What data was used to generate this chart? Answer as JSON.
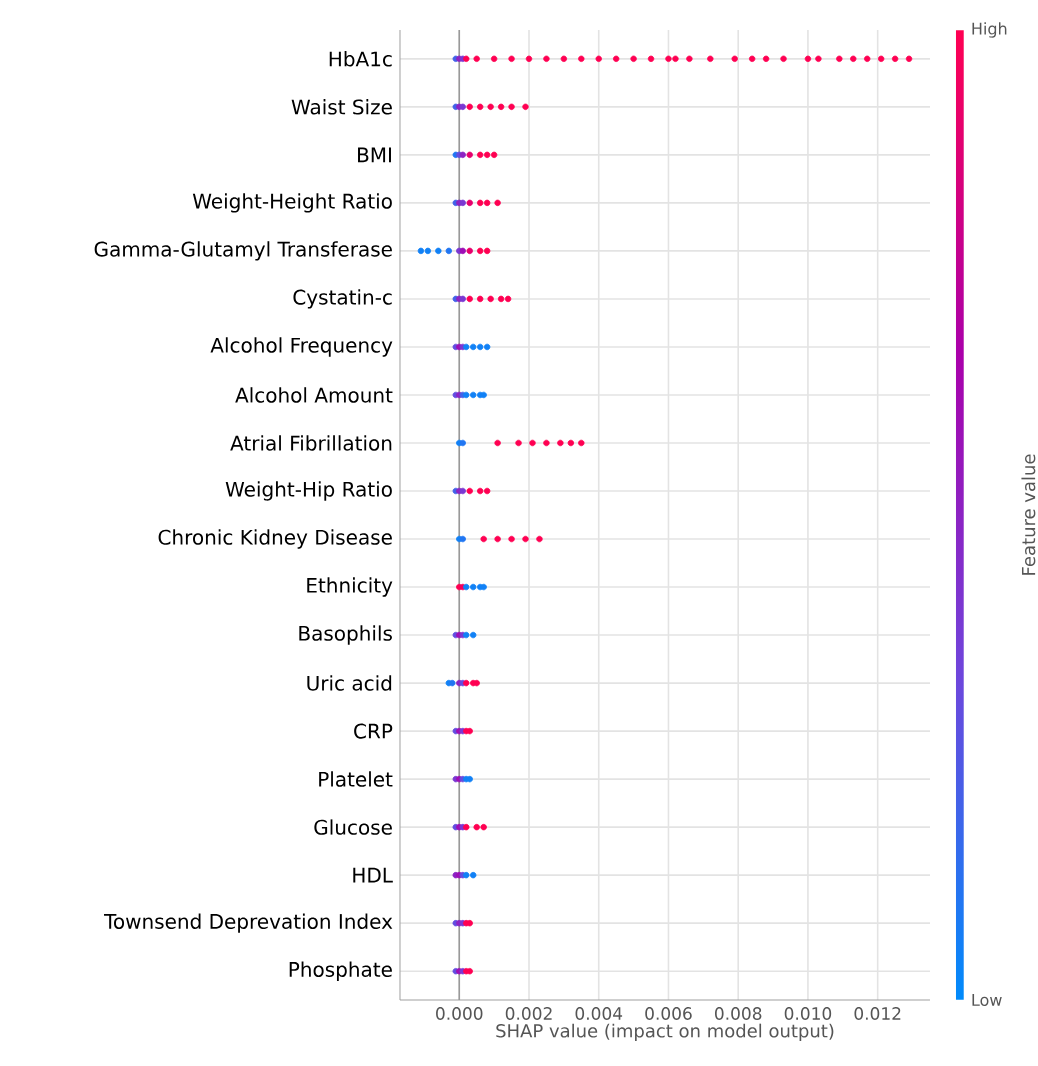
{
  "chart_data": {
    "type": "scatter",
    "orientation": "horizontal",
    "xlabel": "SHAP value (impact on model output)",
    "clabel": "Feature value",
    "categories": [
      "HbA1c",
      "Waist Size",
      "BMI",
      "Weight-Height Ratio",
      "Gamma-Glutamyl Transferase",
      "Cystatin-c",
      "Alcohol Frequency",
      "Alcohol Amount",
      "Atrial Fibrillation",
      "Weight-Hip Ratio",
      "Chronic Kidney Disease",
      "Ethnicity",
      "Basophils",
      "Uric acid",
      "CRP",
      "Platelet",
      "Glucose",
      "HDL",
      "Townsend Deprevation Index",
      "Phosphate"
    ],
    "series": [
      {
        "x": [
          "HbA1c",
          "HbA1c",
          "HbA1c",
          "HbA1c",
          "HbA1c",
          "HbA1c",
          "HbA1c",
          "HbA1c",
          "HbA1c",
          "HbA1c",
          "HbA1c",
          "HbA1c",
          "HbA1c",
          "HbA1c",
          "HbA1c",
          "HbA1c",
          "HbA1c",
          "HbA1c",
          "HbA1c",
          "HbA1c",
          "HbA1c",
          "HbA1c",
          "HbA1c",
          "HbA1c",
          "HbA1c",
          "HbA1c",
          "HbA1c",
          "HbA1c",
          "HbA1c",
          "HbA1c",
          "HbA1c"
        ],
        "values": [
          -0.0001,
          0,
          0.0001,
          0.0002,
          0.0005,
          0.001,
          0.0015,
          0.002,
          0.0025,
          0.003,
          0.0035,
          0.004,
          0.0045,
          0.005,
          0.0055,
          0.006,
          0.0062,
          0.0066,
          0.0072,
          0.0079,
          0.0084,
          0.0088,
          0.0093,
          0.01,
          0.0103,
          0.0109,
          0.0113,
          0.0117,
          0.0121,
          0.0125,
          0.0129
        ],
        "colors": [
          "#4262e8",
          "#8c23c3",
          "#7a38d2",
          "#ff0052",
          "#ff0052",
          "#ff0052",
          "#ff0052",
          "#ff0052",
          "#ff0052",
          "#ff0052",
          "#ff0052",
          "#ff0052",
          "#ff0052",
          "#ff0052",
          "#ff0052",
          "#ff0052",
          "#ff0052",
          "#ff0052",
          "#ff0052",
          "#ff0052",
          "#ff0052",
          "#ff0052",
          "#ff0052",
          "#ff0052",
          "#ff0052",
          "#ff0052",
          "#ff0052",
          "#ff0052",
          "#ff0052",
          "#ff0052",
          "#ff0052"
        ]
      },
      {
        "x": [
          "Waist Size",
          "Waist Size",
          "Waist Size",
          "Waist Size",
          "Waist Size",
          "Waist Size",
          "Waist Size",
          "Waist Size",
          "Waist Size"
        ],
        "values": [
          -0.0001,
          0,
          0.0001,
          0.0003,
          0.0006,
          0.0009,
          0.0012,
          0.0015,
          0.0019
        ],
        "colors": [
          "#4262e8",
          "#8c23c3",
          "#7a38d2",
          "#ff0052",
          "#ff0052",
          "#ff0052",
          "#ff0052",
          "#ff0052",
          "#ff0052"
        ]
      },
      {
        "x": [
          "BMI",
          "BMI",
          "BMI",
          "BMI",
          "BMI",
          "BMI",
          "BMI"
        ],
        "values": [
          -0.0001,
          0,
          0.0001,
          0.0003,
          0.0006,
          0.0008,
          0.001
        ],
        "colors": [
          "#2176f2",
          "#634ddf",
          "#8c23c3",
          "#e6006c",
          "#ff0052",
          "#ff0052",
          "#ff0052"
        ]
      },
      {
        "x": [
          "Weight-Height Ratio",
          "Weight-Height Ratio",
          "Weight-Height Ratio",
          "Weight-Height Ratio",
          "Weight-Height Ratio",
          "Weight-Height Ratio",
          "Weight-Height Ratio"
        ],
        "values": [
          -0.0001,
          0,
          0.0001,
          0.0003,
          0.0006,
          0.0008,
          0.0011
        ],
        "colors": [
          "#4262e8",
          "#8c23c3",
          "#7a38d2",
          "#e6006c",
          "#ff0052",
          "#ff0052",
          "#ff0052"
        ]
      },
      {
        "x": [
          "Gamma-Glutamyl Transferase",
          "Gamma-Glutamyl Transferase",
          "Gamma-Glutamyl Transferase",
          "Gamma-Glutamyl Transferase",
          "Gamma-Glutamyl Transferase",
          "Gamma-Glutamyl Transferase",
          "Gamma-Glutamyl Transferase",
          "Gamma-Glutamyl Transferase",
          "Gamma-Glutamyl Transferase"
        ],
        "values": [
          -0.0011,
          -0.0009,
          -0.0006,
          -0.0003,
          0,
          0.0001,
          0.0003,
          0.0006,
          0.0008
        ],
        "colors": [
          "#1181f6",
          "#1181f6",
          "#1181f6",
          "#2176f2",
          "#7a38d2",
          "#9e0eb5",
          "#e6006c",
          "#ff0052",
          "#ff0052"
        ]
      },
      {
        "x": [
          "Cystatin-c",
          "Cystatin-c",
          "Cystatin-c",
          "Cystatin-c",
          "Cystatin-c",
          "Cystatin-c",
          "Cystatin-c",
          "Cystatin-c"
        ],
        "values": [
          -0.0001,
          0,
          0.0001,
          0.0003,
          0.0006,
          0.0009,
          0.0012,
          0.0014
        ],
        "colors": [
          "#4262e8",
          "#8c23c3",
          "#7a38d2",
          "#ff0052",
          "#ff0052",
          "#ff0052",
          "#ff0052",
          "#ff0052"
        ]
      },
      {
        "x": [
          "Alcohol Frequency",
          "Alcohol Frequency",
          "Alcohol Frequency",
          "Alcohol Frequency",
          "Alcohol Frequency",
          "Alcohol Frequency",
          "Alcohol Frequency"
        ],
        "values": [
          -0.0001,
          0,
          0.0001,
          0.0002,
          0.0004,
          0.0006,
          0.0008
        ],
        "colors": [
          "#634ddf",
          "#9e0eb5",
          "#7a38d2",
          "#1181f6",
          "#1181f6",
          "#1181f6",
          "#1181f6"
        ]
      },
      {
        "x": [
          "Alcohol Amount",
          "Alcohol Amount",
          "Alcohol Amount",
          "Alcohol Amount",
          "Alcohol Amount",
          "Alcohol Amount",
          "Alcohol Amount"
        ],
        "values": [
          -0.0001,
          0,
          0.0001,
          0.0002,
          0.0004,
          0.0006,
          0.0007
        ],
        "colors": [
          "#634ddf",
          "#8c23c3",
          "#4262e8",
          "#1181f6",
          "#1181f6",
          "#1181f6",
          "#1181f6"
        ]
      },
      {
        "x": [
          "Atrial Fibrillation",
          "Atrial Fibrillation",
          "Atrial Fibrillation",
          "Atrial Fibrillation",
          "Atrial Fibrillation",
          "Atrial Fibrillation",
          "Atrial Fibrillation",
          "Atrial Fibrillation",
          "Atrial Fibrillation"
        ],
        "values": [
          0,
          0.0001,
          0.0011,
          0.0017,
          0.0021,
          0.0025,
          0.0029,
          0.0032,
          0.0035
        ],
        "colors": [
          "#1181f6",
          "#2176f2",
          "#ff0052",
          "#ff0052",
          "#ff0052",
          "#ff0052",
          "#ff0052",
          "#ff0052",
          "#ff0052"
        ]
      },
      {
        "x": [
          "Weight-Hip Ratio",
          "Weight-Hip Ratio",
          "Weight-Hip Ratio",
          "Weight-Hip Ratio",
          "Weight-Hip Ratio",
          "Weight-Hip Ratio"
        ],
        "values": [
          -0.0001,
          0,
          0.0001,
          0.0003,
          0.0006,
          0.0008
        ],
        "colors": [
          "#4262e8",
          "#8c23c3",
          "#7a38d2",
          "#ff0052",
          "#ff0052",
          "#ff0052"
        ]
      },
      {
        "x": [
          "Chronic Kidney Disease",
          "Chronic Kidney Disease",
          "Chronic Kidney Disease",
          "Chronic Kidney Disease",
          "Chronic Kidney Disease",
          "Chronic Kidney Disease",
          "Chronic Kidney Disease"
        ],
        "values": [
          0,
          0.0001,
          0.0007,
          0.0011,
          0.0015,
          0.0019,
          0.0023
        ],
        "colors": [
          "#1181f6",
          "#2176f2",
          "#ff0052",
          "#ff0052",
          "#ff0052",
          "#ff0052",
          "#ff0052"
        ]
      },
      {
        "x": [
          "Ethnicity",
          "Ethnicity",
          "Ethnicity",
          "Ethnicity",
          "Ethnicity",
          "Ethnicity"
        ],
        "values": [
          0,
          0.0001,
          0.0002,
          0.0004,
          0.0006,
          0.0007
        ],
        "colors": [
          "#ff0052",
          "#f2005f",
          "#1181f6",
          "#1181f6",
          "#1181f6",
          "#1181f6"
        ]
      },
      {
        "x": [
          "Basophils",
          "Basophils",
          "Basophils",
          "Basophils",
          "Basophils"
        ],
        "values": [
          -0.0001,
          0,
          0.0001,
          0.0002,
          0.0004
        ],
        "colors": [
          "#634ddf",
          "#9e0eb5",
          "#7a38d2",
          "#1181f6",
          "#1181f6"
        ]
      },
      {
        "x": [
          "Uric acid",
          "Uric acid",
          "Uric acid",
          "Uric acid",
          "Uric acid",
          "Uric acid",
          "Uric acid"
        ],
        "values": [
          -0.0003,
          -0.0002,
          0,
          0.0001,
          0.0002,
          0.0004,
          0.0005
        ],
        "colors": [
          "#1181f6",
          "#2176f2",
          "#8c23c3",
          "#634ddf",
          "#ff0052",
          "#ff0052",
          "#ff0052"
        ]
      },
      {
        "x": [
          "CRP",
          "CRP",
          "CRP",
          "CRP",
          "CRP"
        ],
        "values": [
          -0.0001,
          0,
          0.0001,
          0.0002,
          0.0003
        ],
        "colors": [
          "#634ddf",
          "#9e0eb5",
          "#7a38d2",
          "#ff0052",
          "#ff0052"
        ]
      },
      {
        "x": [
          "Platelet",
          "Platelet",
          "Platelet",
          "Platelet",
          "Platelet"
        ],
        "values": [
          -0.0001,
          0,
          0.0001,
          0.0002,
          0.0003
        ],
        "colors": [
          "#7a38d2",
          "#9e0eb5",
          "#634ddf",
          "#1181f6",
          "#1181f6"
        ]
      },
      {
        "x": [
          "Glucose",
          "Glucose",
          "Glucose",
          "Glucose",
          "Glucose",
          "Glucose"
        ],
        "values": [
          -0.0001,
          0,
          0.0001,
          0.0002,
          0.0005,
          0.0007
        ],
        "colors": [
          "#634ddf",
          "#9e0eb5",
          "#7a38d2",
          "#ff0052",
          "#ff0052",
          "#ff0052"
        ]
      },
      {
        "x": [
          "HDL",
          "HDL",
          "HDL",
          "HDL",
          "HDL"
        ],
        "values": [
          -0.0001,
          0,
          0.0001,
          0.0002,
          0.0004
        ],
        "colors": [
          "#8c23c3",
          "#9e0eb5",
          "#634ddf",
          "#1181f6",
          "#1181f6"
        ]
      },
      {
        "x": [
          "Townsend Deprevation Index",
          "Townsend Deprevation Index",
          "Townsend Deprevation Index",
          "Townsend Deprevation Index",
          "Townsend Deprevation Index"
        ],
        "values": [
          -0.0001,
          0,
          0.0001,
          0.0002,
          0.0003
        ],
        "colors": [
          "#634ddf",
          "#8c23c3",
          "#7a38d2",
          "#ff0052",
          "#ff0052"
        ]
      },
      {
        "x": [
          "Phosphate",
          "Phosphate",
          "Phosphate",
          "Phosphate",
          "Phosphate"
        ],
        "values": [
          -0.0001,
          0,
          0.0001,
          0.0002,
          0.0003
        ],
        "colors": [
          "#634ddf",
          "#9e0eb5",
          "#7a38d2",
          "#ff0052",
          "#ff0052"
        ]
      }
    ],
    "xlim": [
      -0.0017,
      0.0135
    ],
    "xticks": [
      {
        "value": 0,
        "label": "0.000"
      },
      {
        "value": 0.002,
        "label": "0.002"
      },
      {
        "value": 0.004,
        "label": "0.004"
      },
      {
        "value": 0.006,
        "label": "0.006"
      },
      {
        "value": 0.008,
        "label": "0.008"
      },
      {
        "value": 0.01,
        "label": "0.010"
      },
      {
        "value": 0.012,
        "label": "0.012"
      }
    ],
    "annotations": [
      "High",
      "Low"
    ],
    "grid": true,
    "ref_lines": [
      {
        "axis": "x",
        "value": 0,
        "color": "#999999"
      }
    ]
  }
}
